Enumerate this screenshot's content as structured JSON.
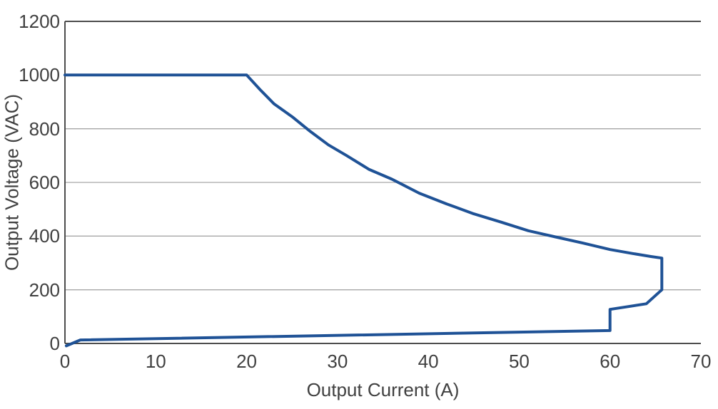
{
  "chart_data": {
    "type": "line",
    "title": "",
    "xlabel": "Output Current (A)",
    "ylabel": "Output Voltage (VAC)",
    "xlim": [
      0,
      70
    ],
    "ylim": [
      0,
      1200
    ],
    "x_ticks": [
      0,
      10,
      20,
      30,
      40,
      50,
      60,
      70
    ],
    "y_ticks": [
      0,
      200,
      400,
      600,
      800,
      1000,
      1200
    ],
    "grid": "horizontal-gridlines-only",
    "legend_position": "none",
    "colors": {
      "line": "#1F5296",
      "gridline": "#A6A6A6",
      "axis_border": "#4D4D4D",
      "tick_label": "#404040",
      "background": "#FFFFFF"
    },
    "series": [
      {
        "name": "voltage-current-operating-envelope",
        "color": "#1F5296",
        "stroke_width": 4,
        "points": [
          [
            0,
            1000
          ],
          [
            20,
            1000
          ],
          [
            21.5,
            945
          ],
          [
            23,
            893
          ],
          [
            25,
            845
          ],
          [
            27,
            790
          ],
          [
            29,
            740
          ],
          [
            31,
            700
          ],
          [
            33.5,
            648
          ],
          [
            36,
            612
          ],
          [
            39,
            560
          ],
          [
            42,
            520
          ],
          [
            45,
            483
          ],
          [
            48,
            452
          ],
          [
            51,
            420
          ],
          [
            54,
            397
          ],
          [
            57,
            374
          ],
          [
            60,
            350
          ],
          [
            62.5,
            335
          ],
          [
            64.5,
            324
          ],
          [
            65.7,
            318
          ],
          [
            65.7,
            200
          ],
          [
            64,
            148
          ],
          [
            60,
            127
          ],
          [
            60,
            48
          ],
          [
            1.7,
            13
          ],
          [
            0.15,
            -9
          ]
        ]
      }
    ]
  }
}
